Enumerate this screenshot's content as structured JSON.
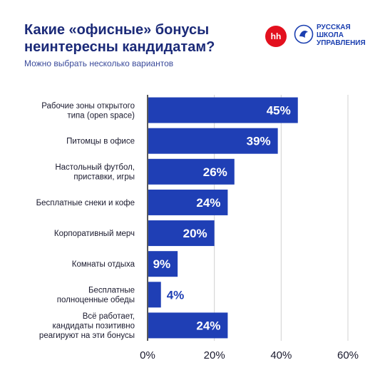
{
  "header": {
    "title_line1": "Какие «офисные» бонусы",
    "title_line2": "неинтересны кандидатам?",
    "subtitle": "Можно выбрать несколько вариантов"
  },
  "logos": {
    "hh": "hh",
    "school_line1": "Русская",
    "school_line2": "Школа",
    "school_line3": "Управления"
  },
  "colors": {
    "bar": "#1f3fb5",
    "axis": "#222222",
    "grid": "#d0d0d0",
    "title": "#1b2a78",
    "hh": "#e3101e"
  },
  "chart_data": {
    "type": "bar",
    "orientation": "horizontal",
    "categories": [
      [
        "Рабочие зоны открытого",
        "типа (open space)"
      ],
      [
        "Питомцы в офисе"
      ],
      [
        "Настольный футбол,",
        "приставки, игры"
      ],
      [
        "Бесплатные снеки и кофе"
      ],
      [
        "Корпоративный мерч"
      ],
      [
        "Комнаты отдыха"
      ],
      [
        "Бесплатные",
        "полноценные обеды"
      ],
      [
        "Всё работает,",
        "кандидаты позитивно",
        "реагируют на эти бонусы"
      ]
    ],
    "values": [
      45,
      39,
      26,
      24,
      20,
      9,
      4,
      24
    ],
    "value_labels": [
      "45%",
      "39%",
      "26%",
      "24%",
      "20%",
      "9%",
      "4%",
      "24%"
    ],
    "xlim": [
      0,
      60
    ],
    "x_ticks": [
      0,
      20,
      40,
      60
    ],
    "x_tick_labels": [
      "0%",
      "20%",
      "40%",
      "60%"
    ],
    "grid": true,
    "xlabel": "",
    "ylabel": ""
  }
}
